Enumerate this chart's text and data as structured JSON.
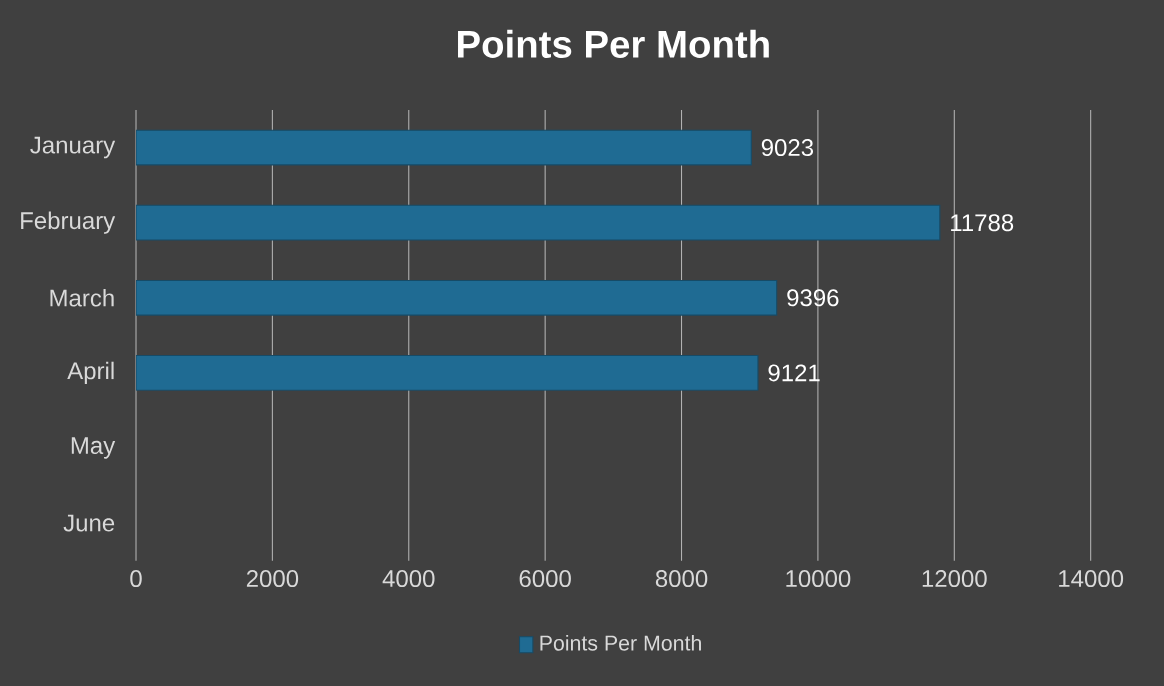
{
  "chart_data": {
    "type": "bar",
    "orientation": "horizontal",
    "title": "Points Per Month",
    "categories": [
      "January",
      "February",
      "March",
      "April",
      "May",
      "June"
    ],
    "series": [
      {
        "name": "Points Per Month",
        "color": "#1f6b93",
        "values": [
          9023,
          11788,
          9396,
          9121,
          null,
          null
        ]
      }
    ],
    "xlim": [
      0,
      14000
    ],
    "xticks": [
      0,
      2000,
      4000,
      6000,
      8000,
      10000,
      12000,
      14000
    ],
    "grid": "x",
    "legend": "bottom",
    "data_labels": true
  }
}
